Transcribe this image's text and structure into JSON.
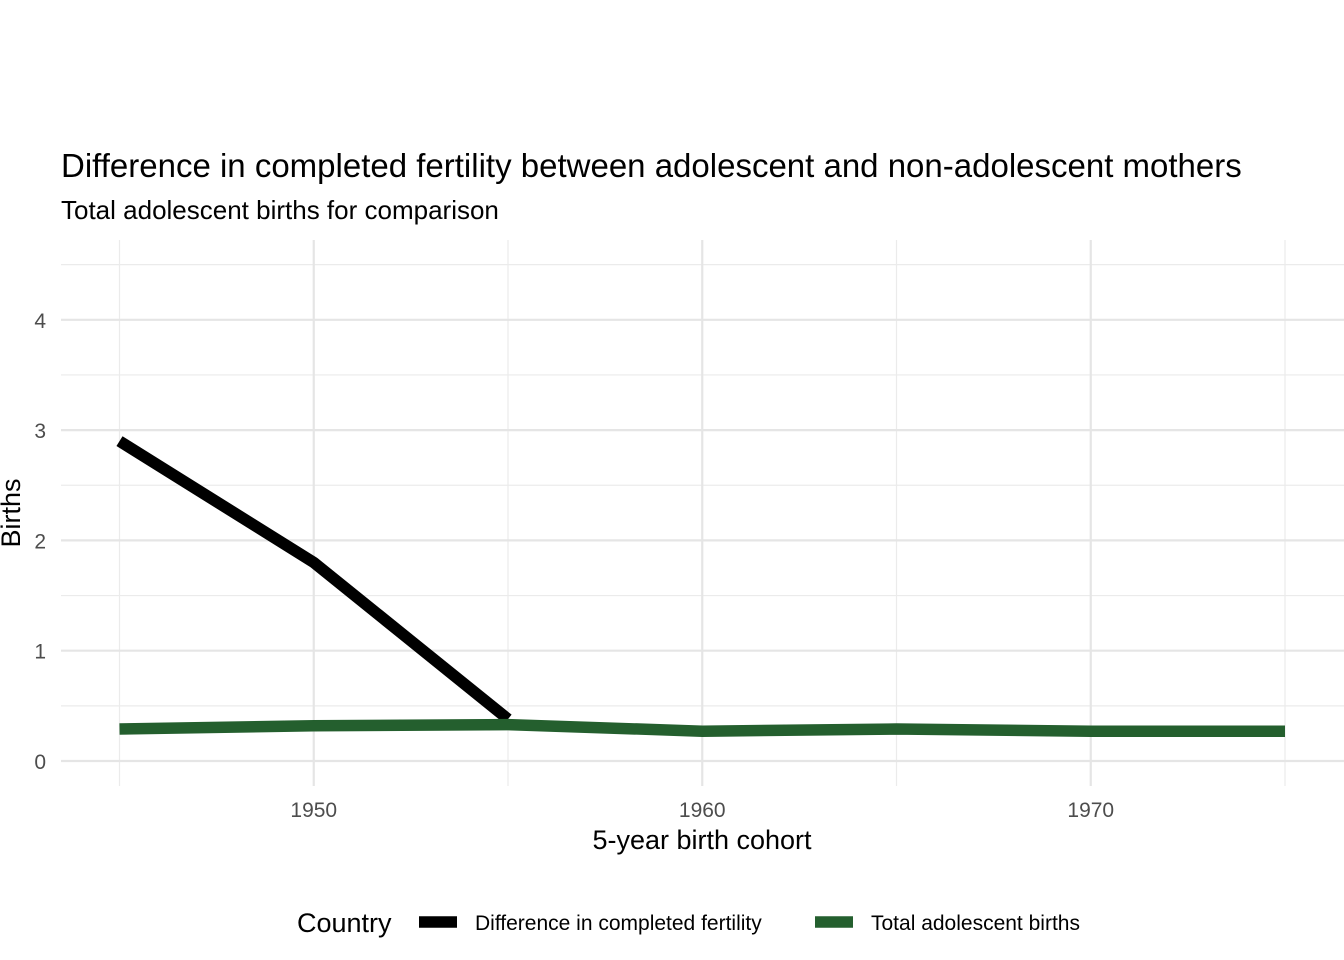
{
  "chart_data": {
    "type": "line",
    "title": "Difference in completed fertility between adolescent and non-adolescent mothers",
    "subtitle": "Total adolescent births for comparison",
    "xlabel": "5-year birth cohort",
    "ylabel": "Births",
    "xlim": [
      1943.5,
      1976.5
    ],
    "ylim": [
      0,
      4.7
    ],
    "x_ticks": [
      1950,
      1960,
      1970
    ],
    "x_tick_labels": [
      "1950",
      "1960",
      "1970"
    ],
    "y_ticks": [
      0,
      1,
      2,
      3,
      4
    ],
    "y_tick_labels": [
      "0",
      "1",
      "2",
      "3",
      "4"
    ],
    "grid": true,
    "legend": {
      "title": "Country",
      "position": "bottom"
    },
    "series": [
      {
        "name": "Difference in completed fertility",
        "color": "#000000",
        "x": [
          1945,
          1950,
          1955
        ],
        "y": [
          2.9,
          1.8,
          0.38
        ]
      },
      {
        "name": "Total adolescent births",
        "color": "#245f2e",
        "x": [
          1945,
          1950,
          1955,
          1960,
          1965,
          1970,
          1975
        ],
        "y": [
          0.29,
          0.32,
          0.33,
          0.27,
          0.29,
          0.27,
          0.27
        ]
      }
    ]
  }
}
